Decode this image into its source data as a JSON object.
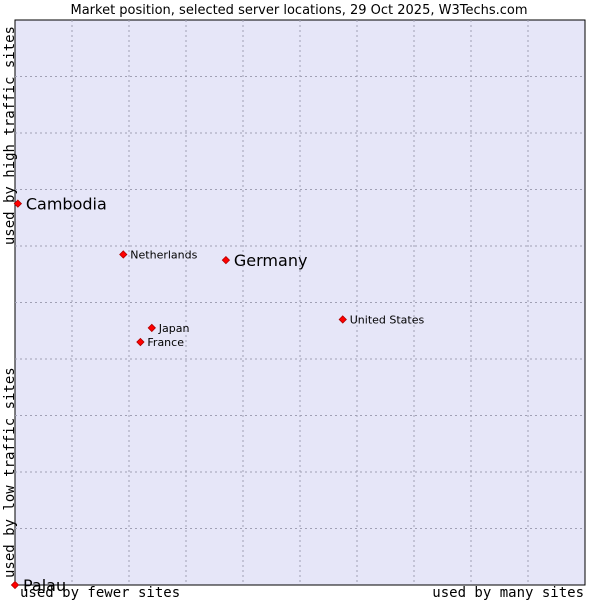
{
  "chart_data": {
    "type": "scatter",
    "title": "Market position, selected server locations, 29 Oct 2025, W3Techs.com",
    "xlabel_left": "used by fewer sites",
    "xlabel_right": "used by many sites",
    "ylabel_bottom": "used by low traffic sites",
    "ylabel_top": "used by high traffic sites",
    "xlim": [
      0,
      100
    ],
    "ylim": [
      0,
      100
    ],
    "grid": true,
    "colors": {
      "plot_bg": "#e6e6f8",
      "grid": "#a0a0b4",
      "point": "#ff0000",
      "point_outline": "#b00000"
    },
    "points": [
      {
        "label": "Cambodia",
        "x": 0.5,
        "y": 67.5,
        "emphasis": true
      },
      {
        "label": "Netherlands",
        "x": 19,
        "y": 58.5,
        "emphasis": false
      },
      {
        "label": "Germany",
        "x": 37,
        "y": 57.5,
        "emphasis": true
      },
      {
        "label": "United States",
        "x": 57.5,
        "y": 47,
        "emphasis": false
      },
      {
        "label": "Japan",
        "x": 24,
        "y": 45.5,
        "emphasis": false
      },
      {
        "label": "France",
        "x": 22,
        "y": 43,
        "emphasis": false
      },
      {
        "label": "Palau",
        "x": 0,
        "y": 0,
        "emphasis": true
      }
    ]
  }
}
